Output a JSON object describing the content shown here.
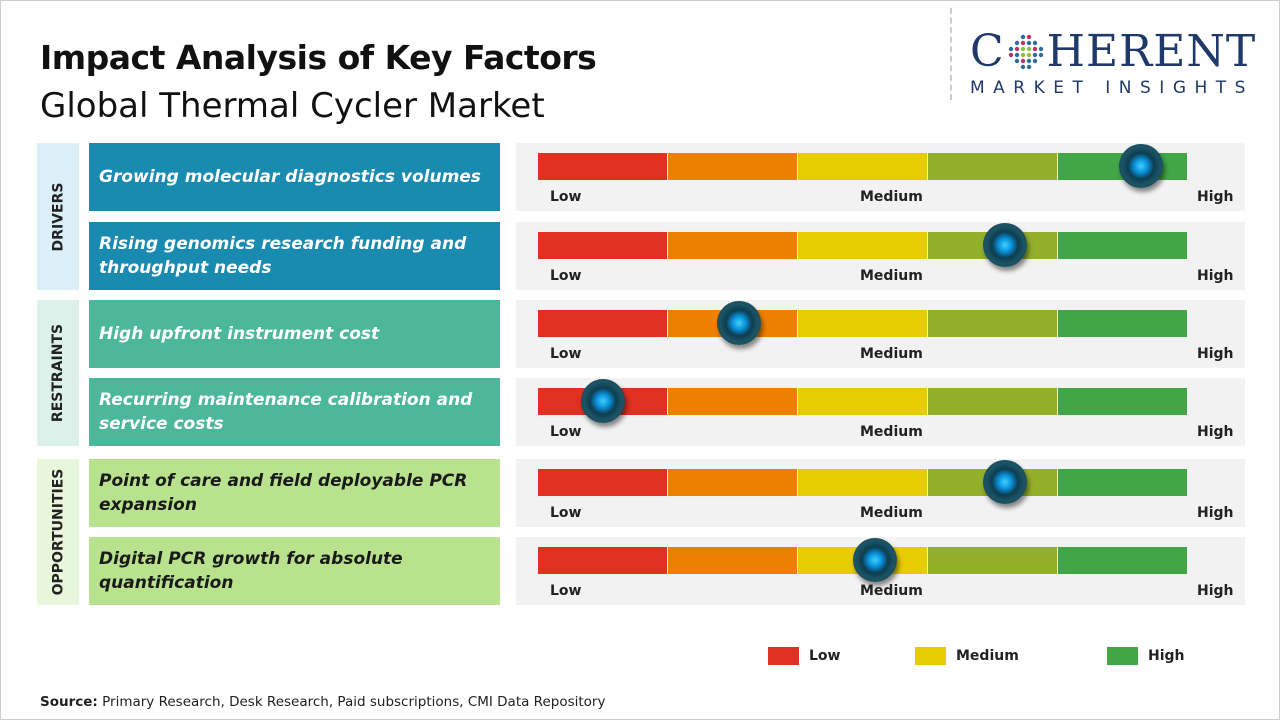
{
  "header": {
    "title": "Impact Analysis of Key Factors",
    "subtitle": "Global Thermal Cycler Market"
  },
  "logo": {
    "line1_a": "C",
    "line1_b": "HERENT",
    "line2": "MARKET INSIGHTS"
  },
  "scale": {
    "low": "Low",
    "medium": "Medium",
    "high": "High"
  },
  "colors": {
    "segments": [
      "#e03020",
      "#ee8000",
      "#e6cc00",
      "#93b02a",
      "#42a546"
    ],
    "drivers": "#1a8bb0",
    "restraints": "#4cb79a",
    "opportunities": "#b8e28e"
  },
  "categories": [
    {
      "name": "DRIVERS",
      "bg": "#dbeff8",
      "label_bg": "#1a8bb0",
      "text_color": "#ffffff",
      "factors": [
        {
          "label": "Growing molecular diagnostics volumes",
          "impact": 0.93
        },
        {
          "label": "Rising genomics research funding and throughput needs",
          "impact": 0.72
        }
      ]
    },
    {
      "name": "RESTRAINTS",
      "bg": "#dcf1ea",
      "label_bg": "#4cb79a",
      "text_color": "#ffffff",
      "factors": [
        {
          "label": "High upfront instrument cost",
          "impact": 0.31
        },
        {
          "label": "Recurring maintenance calibration and service costs",
          "impact": 0.1
        }
      ]
    },
    {
      "name": "OPPORTUNITIES",
      "bg": "#e8f6dc",
      "label_bg": "#b8e28e",
      "text_color": "#1a1a1a",
      "factors": [
        {
          "label": "Point of care and field deployable PCR expansion",
          "impact": 0.72
        },
        {
          "label": "Digital PCR growth for absolute quantification",
          "impact": 0.52
        }
      ]
    }
  ],
  "legend": [
    {
      "label": "Low",
      "color": "#e03020"
    },
    {
      "label": "Medium",
      "color": "#e6cc00"
    },
    {
      "label": "High",
      "color": "#42a546"
    }
  ],
  "source": {
    "prefix": "Source:",
    "text": " Primary Research, Desk Research, Paid subscriptions, CMI Data Repository"
  }
}
